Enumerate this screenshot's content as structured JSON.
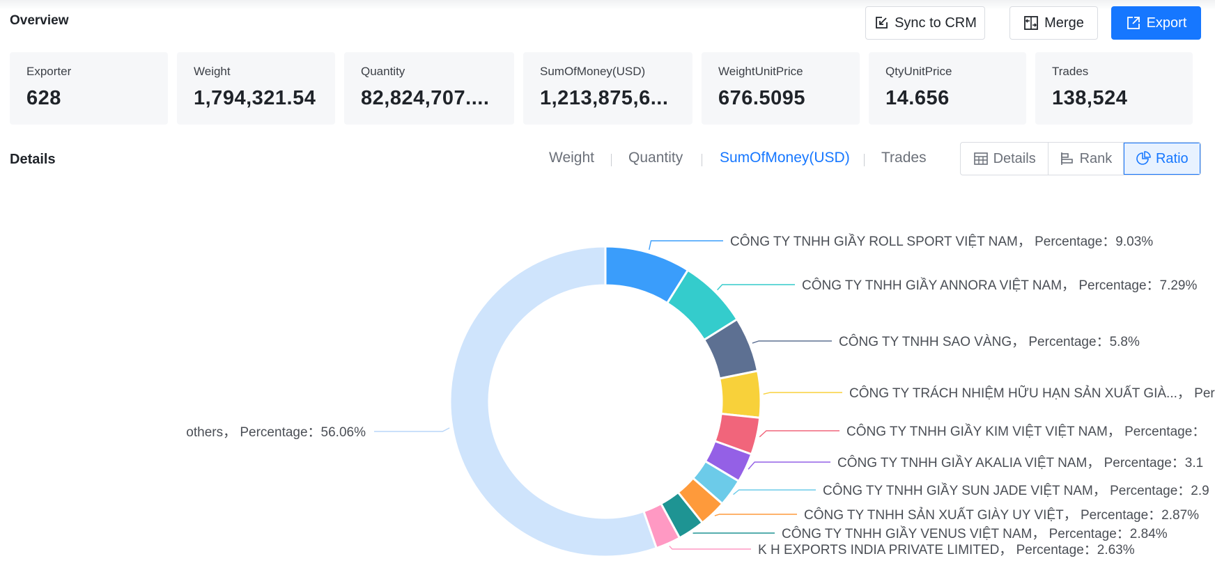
{
  "header": {
    "title": "Overview",
    "sync_label": "Sync to CRM",
    "merge_label": "Merge",
    "export_label": "Export"
  },
  "stats": [
    {
      "label": "Exporter",
      "value": "628"
    },
    {
      "label": "Weight",
      "value": "1,794,321.54"
    },
    {
      "label": "Quantity",
      "value": "82,824,707...."
    },
    {
      "label": "SumOfMoney(USD)",
      "value": "1,213,875,6..."
    },
    {
      "label": "WeightUnitPrice",
      "value": "676.5095"
    },
    {
      "label": "QtyUnitPrice",
      "value": "14.656"
    },
    {
      "label": "Trades",
      "value": "138,524"
    }
  ],
  "details": {
    "title": "Details",
    "metric_tabs": [
      "Weight",
      "Quantity",
      "SumOfMoney(USD)",
      "Trades"
    ],
    "active_metric": "SumOfMoney(USD)",
    "views": [
      "Details",
      "Rank",
      "Ratio"
    ],
    "active_view": "Ratio"
  },
  "chart_data": {
    "type": "pie",
    "subtype": "donut",
    "slices": [
      {
        "name": "CÔNG TY TNHH GIẦY ROLL SPORT VIỆT NAM",
        "value": 9.03,
        "label": "CÔNG TY TNHH GIẦY ROLL SPORT VIỆT NAM，  Percentage：9.03%",
        "color": "#3a9dfb"
      },
      {
        "name": "CÔNG TY TNHH GIẦY ANNORA VIỆT NAM",
        "value": 7.29,
        "label": "CÔNG TY TNHH GIẦY ANNORA VIỆT NAM，  Percentage：7.29%",
        "color": "#34cccc"
      },
      {
        "name": "CÔNG TY TNHH SAO VÀNG",
        "value": 5.8,
        "label": "CÔNG TY TNHH SAO VÀNG，  Percentage：5.8%",
        "color": "#5d7092"
      },
      {
        "name": "CÔNG TY TRÁCH NHIỆM HỮU HẠN SẢN XUẤT GIÀ...",
        "value": 4.9,
        "label": "CÔNG TY TRÁCH NHIỆM HỮU HẠN SẢN XUẤT GIÀ...，  Per",
        "color": "#f8d13a"
      },
      {
        "name": "CÔNG TY TNHH GIẦY KIM VIỆT VIỆT NAM",
        "value": 3.9,
        "label": "CÔNG TY TNHH GIẦY KIM VIỆT VIỆT NAM，  Percentage：",
        "color": "#f1657b"
      },
      {
        "name": "CÔNG TY TNHH GIẦY AKALIA VIỆT NAM",
        "value": 3.1,
        "label": "CÔNG TY TNHH GIẦY AKALIA VIỆT NAM，  Percentage：3.1",
        "color": "#9460e6"
      },
      {
        "name": "CÔNG TY TNHH GIẦY SUN JADE VIỆT NAM",
        "value": 2.9,
        "label": "CÔNG TY TNHH GIẦY SUN JADE VIỆT NAM，  Percentage：2.9",
        "color": "#6ccbe9"
      },
      {
        "name": "CÔNG TY TNHH SẢN XUẤT GIÀY UY VIỆT",
        "value": 2.87,
        "label": "CÔNG TY TNHH SẢN XUẤT GIÀY UY VIỆT，  Percentage：2.87%",
        "color": "#fe9a3b"
      },
      {
        "name": "CÔNG TY TNHH GIẦY VENUS VIỆT NAM",
        "value": 2.84,
        "label": "CÔNG TY TNHH GIẦY VENUS VIỆT NAM，  Percentage：2.84%",
        "color": "#1e9493"
      },
      {
        "name": "K H EXPORTS INDIA PRIVATE LIMITED",
        "value": 2.63,
        "label": "K H EXPORTS INDIA PRIVATE LIMITED，  Percentage：2.63%",
        "color": "#ff99c3"
      },
      {
        "name": "others",
        "value": 56.06,
        "label": "others，  Percentage：56.06%",
        "color": "#cfe4fc"
      }
    ]
  }
}
